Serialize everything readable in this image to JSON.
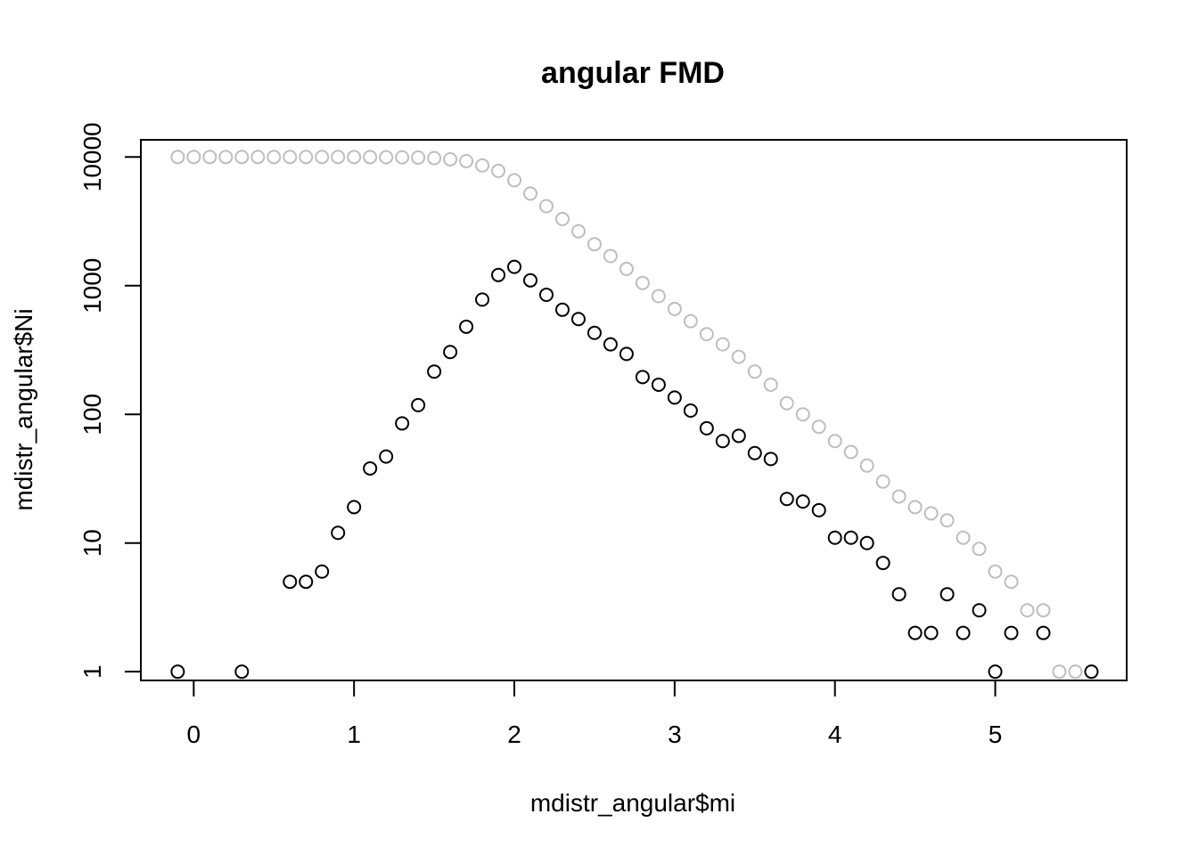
{
  "chart_data": {
    "type": "scatter",
    "title": "angular FMD",
    "xlabel": "mdistr_angular$mi",
    "ylabel": "mdistr_angular$Ni",
    "xlim": [
      -0.33,
      5.82
    ],
    "ylim": [
      0.855,
      13600
    ],
    "y_scale": "log",
    "grid": false,
    "x_ticks": [
      0,
      1,
      2,
      3,
      4,
      5
    ],
    "x_tick_labels": [
      "0",
      "1",
      "2",
      "3",
      "4",
      "5"
    ],
    "y_ticks": [
      1,
      10,
      100,
      1000,
      10000
    ],
    "y_tick_labels": [
      "1",
      "10",
      "100",
      "1000",
      "10000"
    ],
    "series": [
      {
        "color": "#bebebe",
        "x": [
          -0.1,
          0.0,
          0.1,
          0.2,
          0.3,
          0.4,
          0.5,
          0.6,
          0.7,
          0.8,
          0.9,
          1.0,
          1.1,
          1.2,
          1.3,
          1.4,
          1.5,
          1.6,
          1.7,
          1.8,
          1.9,
          2.0,
          2.1,
          2.2,
          2.3,
          2.4,
          2.5,
          2.6,
          2.7,
          2.8,
          2.9,
          3.0,
          3.1,
          3.2,
          3.3,
          3.4,
          3.5,
          3.6,
          3.7,
          3.8,
          3.9,
          4.0,
          4.1,
          4.2,
          4.3,
          4.4,
          4.5,
          4.6,
          4.7,
          4.8,
          4.9,
          5.0,
          5.1,
          5.2,
          5.3,
          5.4,
          5.5,
          5.6
        ],
        "y": [
          10000,
          10000,
          10000,
          10000,
          10000,
          10000,
          10000,
          10000,
          10000,
          10000,
          10000,
          9990,
          9980,
          9970,
          9950,
          9900,
          9800,
          9600,
          9300,
          8600,
          7800,
          6600,
          5200,
          4150,
          3300,
          2650,
          2100,
          1700,
          1350,
          1050,
          830,
          660,
          530,
          420,
          350,
          280,
          215,
          170,
          122,
          100,
          80,
          62,
          51,
          40,
          30,
          23,
          19,
          17,
          15,
          11,
          9,
          6,
          5,
          3,
          3,
          1,
          1,
          1
        ]
      },
      {
        "color": "#000000",
        "x": [
          -0.1,
          0.3,
          0.6,
          0.7,
          0.8,
          0.9,
          1.0,
          1.1,
          1.2,
          1.3,
          1.4,
          1.5,
          1.6,
          1.7,
          1.8,
          1.9,
          2.0,
          2.1,
          2.2,
          2.3,
          2.4,
          2.5,
          2.6,
          2.7,
          2.8,
          2.9,
          3.0,
          3.1,
          3.2,
          3.3,
          3.4,
          3.5,
          3.6,
          3.7,
          3.8,
          3.9,
          4.0,
          4.1,
          4.2,
          4.3,
          4.4,
          4.5,
          4.6,
          4.7,
          4.8,
          4.9,
          5.0,
          5.1,
          5.3,
          5.6
        ],
        "y": [
          1,
          1,
          5,
          5,
          6,
          12,
          19,
          38,
          47,
          85,
          118,
          215,
          305,
          480,
          780,
          1210,
          1400,
          1100,
          850,
          650,
          550,
          430,
          350,
          295,
          195,
          170,
          135,
          107,
          78,
          62,
          68,
          50,
          45,
          22,
          21,
          18,
          11,
          11,
          10,
          7,
          4,
          2,
          2,
          4,
          2,
          3,
          1,
          2,
          2,
          1
        ]
      }
    ]
  }
}
